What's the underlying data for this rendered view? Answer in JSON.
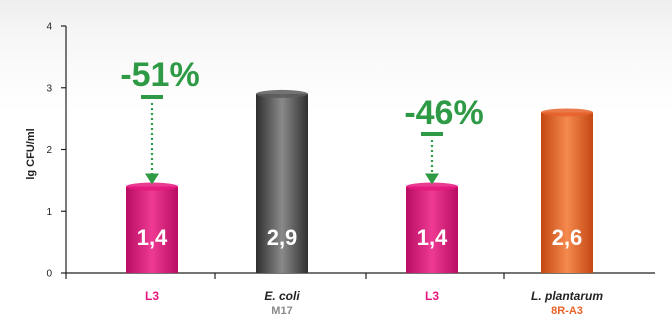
{
  "chart_data": {
    "type": "bar",
    "ylabel": "lg CFU/ml",
    "ylim": [
      0,
      4
    ],
    "yticks": [
      "0",
      "1",
      "2",
      "3",
      "4"
    ],
    "categories": [
      {
        "label": "L3",
        "label_italic": false,
        "sublabel": "",
        "label_color": "#e6177e",
        "sublabel_color": ""
      },
      {
        "label": "E. coli",
        "label_italic": true,
        "sublabel": "M17",
        "label_color": "#222222",
        "sublabel_color": "#8a8a8a"
      },
      {
        "label": "L3",
        "label_italic": false,
        "sublabel": "",
        "label_color": "#e6177e",
        "sublabel_color": ""
      },
      {
        "label": "L. plantarum",
        "label_italic": true,
        "sublabel": "8R-A3",
        "label_color": "#222222",
        "sublabel_color": "#e8632a"
      }
    ],
    "values": [
      1.4,
      2.9,
      1.4,
      2.6
    ],
    "value_labels": [
      "1,4",
      "2,9",
      "1,4",
      "2,6"
    ],
    "bar_colors": [
      "#e6177e",
      "#5a5a5a",
      "#e6177e",
      "#e8632a"
    ],
    "annotations": [
      {
        "text": "-51%",
        "bar_index": 0,
        "color": "#2e9a46"
      },
      {
        "text": "-46%",
        "bar_index": 2,
        "color": "#2e9a46"
      }
    ]
  }
}
